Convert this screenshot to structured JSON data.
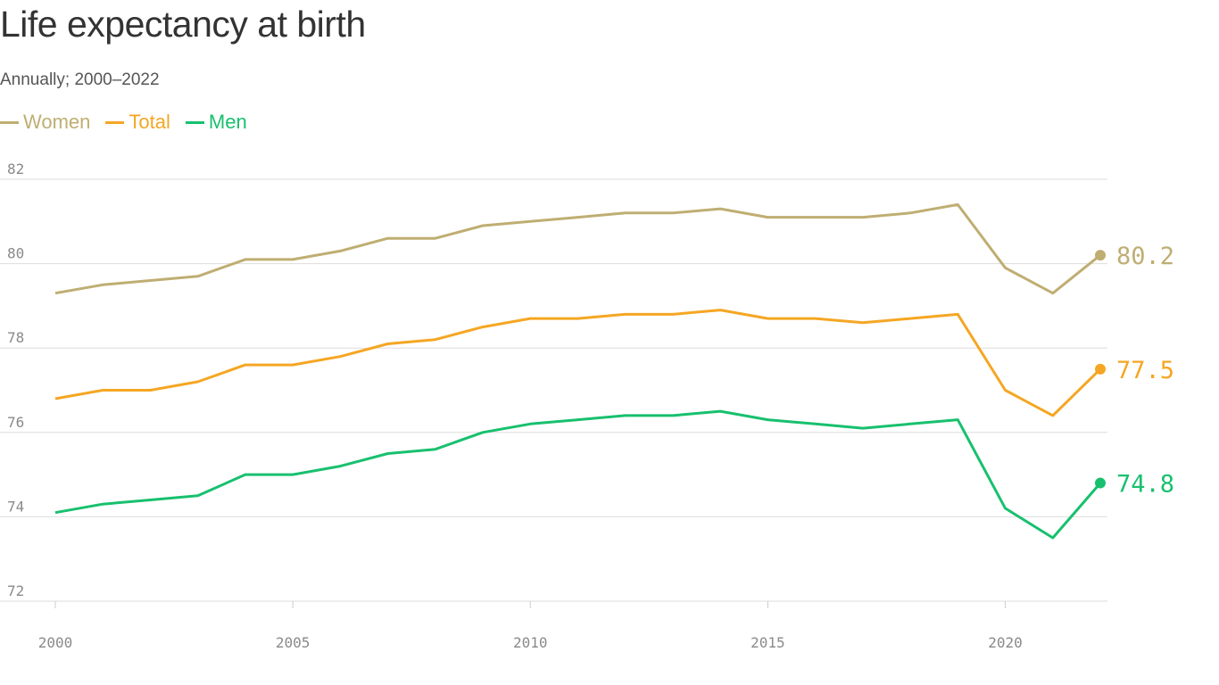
{
  "chart_data": {
    "type": "line",
    "title": "Life expectancy at birth",
    "subtitle": "Annually; 2000–2022",
    "x": [
      2000,
      2001,
      2002,
      2003,
      2004,
      2005,
      2006,
      2007,
      2008,
      2009,
      2010,
      2011,
      2012,
      2013,
      2014,
      2015,
      2016,
      2017,
      2018,
      2019,
      2020,
      2021,
      2022
    ],
    "series": [
      {
        "name": "Women",
        "color": "#bfae72",
        "end_label": "80.2",
        "values": [
          79.3,
          79.5,
          79.6,
          79.7,
          80.1,
          80.1,
          80.3,
          80.6,
          80.6,
          80.9,
          81.0,
          81.1,
          81.2,
          81.2,
          81.3,
          81.1,
          81.1,
          81.1,
          81.2,
          81.4,
          79.9,
          79.3,
          80.2
        ]
      },
      {
        "name": "Total",
        "color": "#f5a623",
        "end_label": "77.5",
        "values": [
          76.8,
          77.0,
          77.0,
          77.2,
          77.6,
          77.6,
          77.8,
          78.1,
          78.2,
          78.5,
          78.7,
          78.7,
          78.8,
          78.8,
          78.9,
          78.7,
          78.7,
          78.6,
          78.7,
          78.8,
          77.0,
          76.4,
          77.5
        ]
      },
      {
        "name": "Men",
        "color": "#18c06e",
        "end_label": "74.8",
        "values": [
          74.1,
          74.3,
          74.4,
          74.5,
          75.0,
          75.0,
          75.2,
          75.5,
          75.6,
          76.0,
          76.2,
          76.3,
          76.4,
          76.4,
          76.5,
          76.3,
          76.2,
          76.1,
          76.2,
          76.3,
          74.2,
          73.5,
          74.8
        ]
      }
    ],
    "yticks": [
      "72",
      "74",
      "76",
      "78",
      "80",
      "82"
    ],
    "xticks": [
      "2000",
      "2005",
      "2010",
      "2015",
      "2020"
    ],
    "ylim": [
      72,
      82
    ],
    "xlim": [
      2000,
      2022
    ],
    "xlabel": "",
    "ylabel": "",
    "grid": "horizontal",
    "legend_position": "top-left"
  }
}
